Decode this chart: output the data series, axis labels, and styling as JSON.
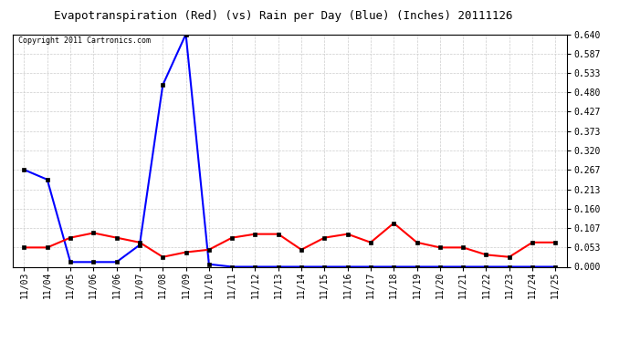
{
  "title": "Evapotranspiration (Red) (vs) Rain per Day (Blue) (Inches) 20111126",
  "copyright": "Copyright 2011 Cartronics.com",
  "x_labels": [
    "11/03",
    "11/04",
    "11/05",
    "11/06",
    "11/06",
    "11/07",
    "11/08",
    "11/09",
    "11/10",
    "11/11",
    "11/12",
    "11/13",
    "11/14",
    "11/15",
    "11/16",
    "11/17",
    "11/18",
    "11/19",
    "11/20",
    "11/21",
    "11/22",
    "11/23",
    "11/24",
    "11/25"
  ],
  "blue_values": [
    0.267,
    0.24,
    0.013,
    0.013,
    0.013,
    0.06,
    0.5,
    0.64,
    0.007,
    0.0,
    0.0,
    0.0,
    0.0,
    0.0,
    0.0,
    0.0,
    0.0,
    0.0,
    0.0,
    0.0,
    0.0,
    0.0,
    0.0,
    0.0
  ],
  "red_values": [
    0.053,
    0.053,
    0.08,
    0.093,
    0.08,
    0.067,
    0.027,
    0.04,
    0.047,
    0.08,
    0.09,
    0.09,
    0.047,
    0.08,
    0.09,
    0.067,
    0.12,
    0.067,
    0.053,
    0.053,
    0.033,
    0.027,
    0.067,
    0.067
  ],
  "y_ticks": [
    0.0,
    0.053,
    0.107,
    0.16,
    0.213,
    0.267,
    0.32,
    0.373,
    0.427,
    0.48,
    0.533,
    0.587,
    0.64
  ],
  "background_color": "#ffffff",
  "grid_color": "#cccccc",
  "blue_color": "#0000ff",
  "red_color": "#ff0000",
  "title_color": "#000000",
  "copyright_color": "#000000",
  "ylim": [
    0.0,
    0.64
  ],
  "title_fontsize": 9,
  "tick_fontsize": 7,
  "copyright_fontsize": 6,
  "line_width": 1.5,
  "marker_size": 3
}
